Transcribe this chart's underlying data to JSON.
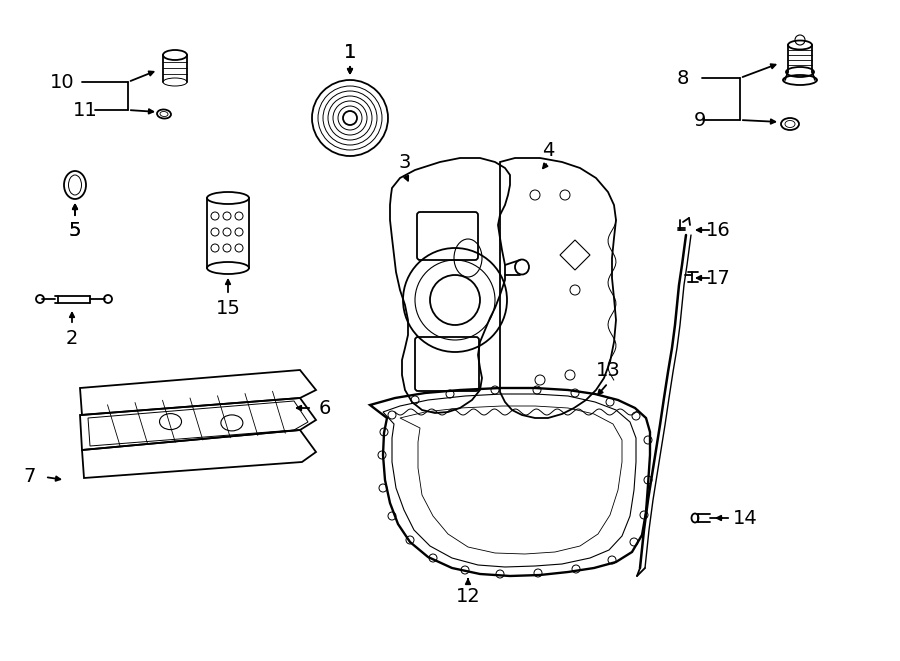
{
  "bg": "#ffffff",
  "lc": "#000000",
  "lw": 1.3,
  "fs": 14,
  "fig_w": 9.0,
  "fig_h": 6.61,
  "dpi": 100
}
